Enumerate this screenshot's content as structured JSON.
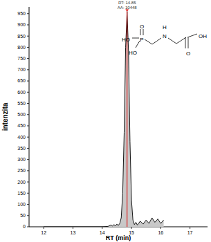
{
  "chart_data": {
    "type": "line",
    "x_label": "RT (min)",
    "y_label": "intenzita",
    "annotations": [
      "RT: 14.85",
      "AA: 10448"
    ],
    "peak": {
      "x": 14.85,
      "y": 960,
      "color": "#e00000"
    },
    "structure": {
      "atoms": [
        "O",
        "P",
        "HO",
        "HO",
        "H",
        "N",
        "O",
        "OH"
      ]
    },
    "x": [
      12.0,
      13.0,
      14.0,
      14.2,
      14.3,
      14.35,
      14.4,
      14.45,
      14.5,
      14.55,
      14.6,
      14.65,
      14.7,
      14.75,
      14.8,
      14.85,
      14.9,
      14.95,
      15.0,
      15.05,
      15.1,
      15.15,
      15.2,
      15.3,
      15.4,
      15.5,
      15.6,
      15.7,
      15.8,
      15.9,
      16.0,
      16.1
    ],
    "values": [
      0,
      0,
      0,
      2,
      8,
      3,
      10,
      4,
      12,
      6,
      15,
      40,
      150,
      420,
      800,
      960,
      780,
      380,
      120,
      30,
      10,
      20,
      8,
      25,
      12,
      30,
      15,
      40,
      20,
      35,
      15,
      30
    ],
    "color": "#000000",
    "xlim": [
      11.5,
      17.6
    ],
    "xticks": [
      12,
      13,
      14,
      15,
      16,
      17
    ],
    "ylim": [
      0,
      980
    ],
    "yticks": [
      0,
      50,
      100,
      150,
      200,
      250,
      300,
      350,
      400,
      450,
      500,
      550,
      600,
      650,
      700,
      750,
      800,
      850,
      900,
      950
    ],
    "grid": false
  }
}
